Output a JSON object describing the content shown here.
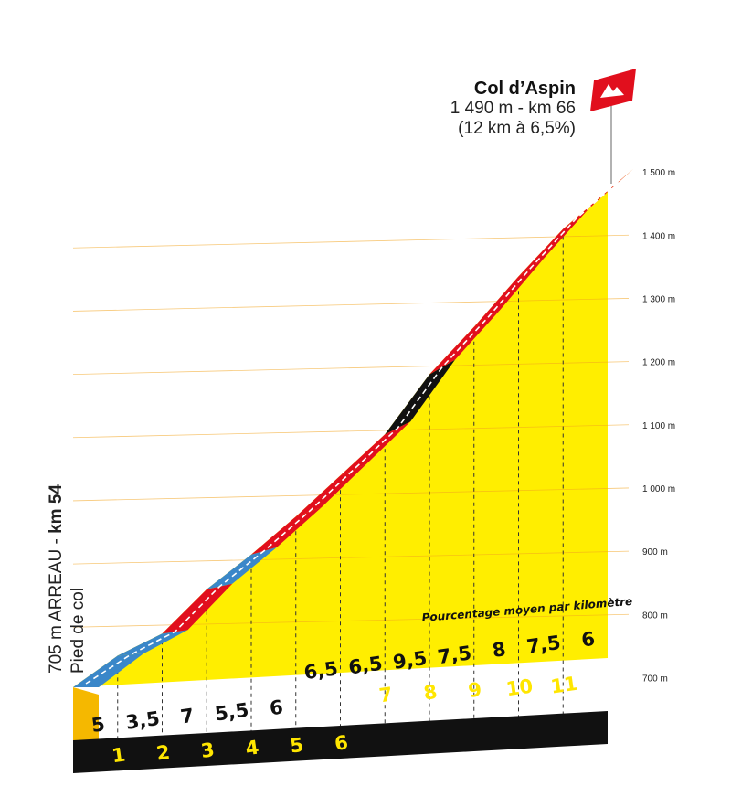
{
  "chart_data": {
    "type": "area",
    "title": "Col d’Aspin",
    "summit": {
      "name": "Col d’Aspin",
      "detail": "1 490 m - km 66",
      "climb": "(12 km à 6,5%)"
    },
    "start": {
      "prefix": "705 m ARREAU - ",
      "km": "km 54",
      "note": "Pied de col"
    },
    "caption": "Pourcentage moyen par kilomètre",
    "altitude_ticks": [
      "700 m",
      "800 m",
      "900 m",
      "1 000 m",
      "1 100 m",
      "1 200 m",
      "1 300 m",
      "1 400 m",
      "1 500 m"
    ],
    "altitude_values": [
      700,
      800,
      900,
      1000,
      1100,
      1200,
      1300,
      1400,
      1500
    ],
    "ylim": [
      650,
      1510
    ],
    "km_labels": [
      "1",
      "2",
      "3",
      "4",
      "5",
      "6",
      "7",
      "8",
      "9",
      "10",
      "11"
    ],
    "series": [
      {
        "values": [
          705,
          755,
          790,
          860,
          915,
          975,
          1040,
          1105,
          1200,
          1275,
          1355,
          1430,
          1490
        ]
      }
    ],
    "grades": [
      "5",
      "3,5",
      "7",
      "5,5",
      "6",
      "6,5",
      "6,5",
      "9,5",
      "7,5",
      "8",
      "7,5",
      "6"
    ],
    "grade_values": [
      5,
      3.5,
      7,
      5.5,
      6,
      6.5,
      6.5,
      9.5,
      7.5,
      8,
      7.5,
      6
    ]
  },
  "colors": {
    "fill": "#ffee00",
    "blue": "#3a87c9",
    "red": "#e10f1d",
    "black": "#111111",
    "flag": "#e10f1d",
    "band": "#111111"
  }
}
